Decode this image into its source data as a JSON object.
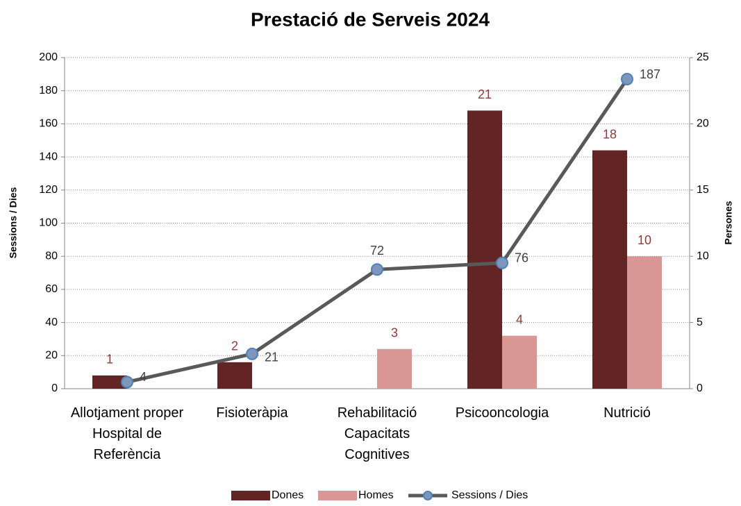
{
  "chart_data": {
    "type": "bar_line",
    "title": "Prestació de Serveis 2024",
    "y_label": "Sessions / Dies",
    "y2_label": "Persones",
    "categories": [
      "Allotjament proper Hospital de Referència",
      "Fisioteràpia",
      "Rehabilitació Capacitats Cognitives",
      "Psicooncologia",
      "Nutrició"
    ],
    "series": [
      {
        "name": "Dones",
        "type": "bar",
        "axis": "y2",
        "color": "#632523",
        "label_color": "#953735",
        "values": [
          1,
          2,
          null,
          21,
          18
        ]
      },
      {
        "name": "Homes",
        "type": "bar",
        "axis": "y2",
        "color": "#d99694",
        "label_color": "#953735",
        "values": [
          null,
          null,
          3,
          4,
          10
        ]
      },
      {
        "name": "Sessions / Dies",
        "type": "line",
        "axis": "y",
        "color": "#595959",
        "marker_color": "#4f81bd",
        "values": [
          4,
          21,
          72,
          76,
          187
        ]
      }
    ],
    "ylim": [
      0,
      200
    ],
    "yticks": [
      0,
      20,
      40,
      60,
      80,
      100,
      120,
      140,
      160,
      180,
      200
    ],
    "y2lim": [
      0,
      25
    ],
    "y2ticks": [
      0,
      5,
      10,
      15,
      20,
      25
    ],
    "grid": true,
    "legend": "bottom"
  }
}
